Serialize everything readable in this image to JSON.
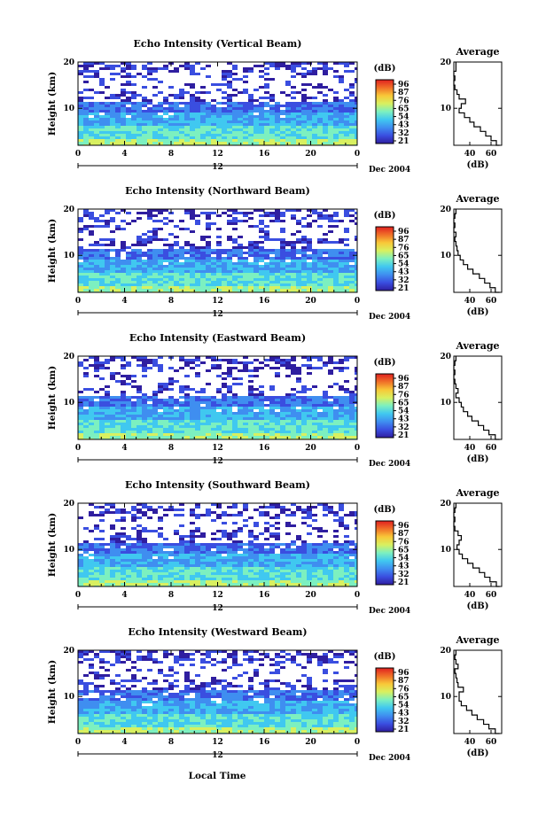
{
  "chart_data": {
    "type": "heatmap",
    "xlabel": "Local Time",
    "date_label": "Dec 2004",
    "x_ticks": [
      "0",
      "4",
      "8",
      "12",
      "16",
      "20",
      "0"
    ],
    "sub_axis_label": "12",
    "xlim": [
      0,
      24
    ],
    "ylabel": "Height (km)",
    "y_ticks": [
      "20",
      "10"
    ],
    "ylim": [
      2,
      20
    ],
    "colorbar": {
      "title": "(dB)",
      "ticks": [
        "96",
        "87",
        "76",
        "65",
        "54",
        "43",
        "32",
        "21"
      ],
      "colors": [
        "#2f1ea0",
        "#3a4ee0",
        "#3f8ef0",
        "#40c8f0",
        "#7cf0c0",
        "#d8f060",
        "#f8c838",
        "#f07028",
        "#e02020"
      ]
    },
    "average_profile": {
      "title": "Average",
      "xlabel": "(dB)",
      "x_ticks": [
        "40",
        "60"
      ],
      "xlim": [
        25,
        70
      ],
      "y_ticks": [
        "20",
        "10"
      ],
      "ylim": [
        2,
        20
      ]
    },
    "panels": [
      {
        "title": "Echo Intensity (Vertical Beam)",
        "profile": [
          [
            68,
            2
          ],
          [
            65,
            3
          ],
          [
            60,
            4
          ],
          [
            55,
            5
          ],
          [
            50,
            6
          ],
          [
            44,
            7
          ],
          [
            40,
            8
          ],
          [
            35,
            9
          ],
          [
            30,
            10
          ],
          [
            32,
            11
          ],
          [
            36,
            12
          ],
          [
            30,
            13
          ],
          [
            28,
            14
          ],
          [
            26,
            15
          ],
          [
            25,
            16
          ],
          [
            26,
            17
          ],
          [
            25,
            18
          ],
          [
            27,
            19
          ],
          [
            27,
            20
          ]
        ]
      },
      {
        "title": "Echo Intensity (Northward Beam)",
        "profile": [
          [
            68,
            2
          ],
          [
            64,
            3
          ],
          [
            59,
            4
          ],
          [
            54,
            5
          ],
          [
            49,
            6
          ],
          [
            43,
            7
          ],
          [
            38,
            8
          ],
          [
            34,
            9
          ],
          [
            31,
            10
          ],
          [
            29,
            11
          ],
          [
            28,
            12
          ],
          [
            27,
            13
          ],
          [
            26,
            14
          ],
          [
            27,
            15
          ],
          [
            25,
            16
          ],
          [
            26,
            17
          ],
          [
            25,
            18
          ],
          [
            26,
            19
          ],
          [
            27,
            20
          ]
        ]
      },
      {
        "title": "Echo Intensity (Eastward Beam)",
        "profile": [
          [
            68,
            2
          ],
          [
            64,
            3
          ],
          [
            58,
            4
          ],
          [
            53,
            5
          ],
          [
            48,
            6
          ],
          [
            42,
            7
          ],
          [
            38,
            8
          ],
          [
            34,
            9
          ],
          [
            32,
            10
          ],
          [
            30,
            11
          ],
          [
            27,
            12
          ],
          [
            29,
            13
          ],
          [
            27,
            14
          ],
          [
            26,
            15
          ],
          [
            25,
            16
          ],
          [
            26,
            17
          ],
          [
            25,
            18
          ],
          [
            26,
            19
          ],
          [
            27,
            20
          ]
        ]
      },
      {
        "title": "Echo Intensity (Southward Beam)",
        "profile": [
          [
            68,
            2
          ],
          [
            65,
            3
          ],
          [
            59,
            4
          ],
          [
            54,
            5
          ],
          [
            49,
            6
          ],
          [
            43,
            7
          ],
          [
            38,
            8
          ],
          [
            33,
            9
          ],
          [
            30,
            10
          ],
          [
            28,
            11
          ],
          [
            30,
            12
          ],
          [
            32,
            13
          ],
          [
            29,
            14
          ],
          [
            26,
            15
          ],
          [
            25,
            16
          ],
          [
            26,
            17
          ],
          [
            25,
            18
          ],
          [
            26,
            19
          ],
          [
            27,
            20
          ]
        ]
      },
      {
        "title": "Echo Intensity (Westward Beam)",
        "profile": [
          [
            68,
            2
          ],
          [
            64,
            3
          ],
          [
            58,
            4
          ],
          [
            53,
            5
          ],
          [
            47,
            6
          ],
          [
            42,
            7
          ],
          [
            37,
            8
          ],
          [
            32,
            9
          ],
          [
            30,
            10
          ],
          [
            30,
            11
          ],
          [
            34,
            12
          ],
          [
            29,
            13
          ],
          [
            28,
            14
          ],
          [
            27,
            15
          ],
          [
            26,
            16
          ],
          [
            29,
            17
          ],
          [
            27,
            18
          ],
          [
            26,
            19
          ],
          [
            27,
            20
          ]
        ]
      }
    ]
  }
}
